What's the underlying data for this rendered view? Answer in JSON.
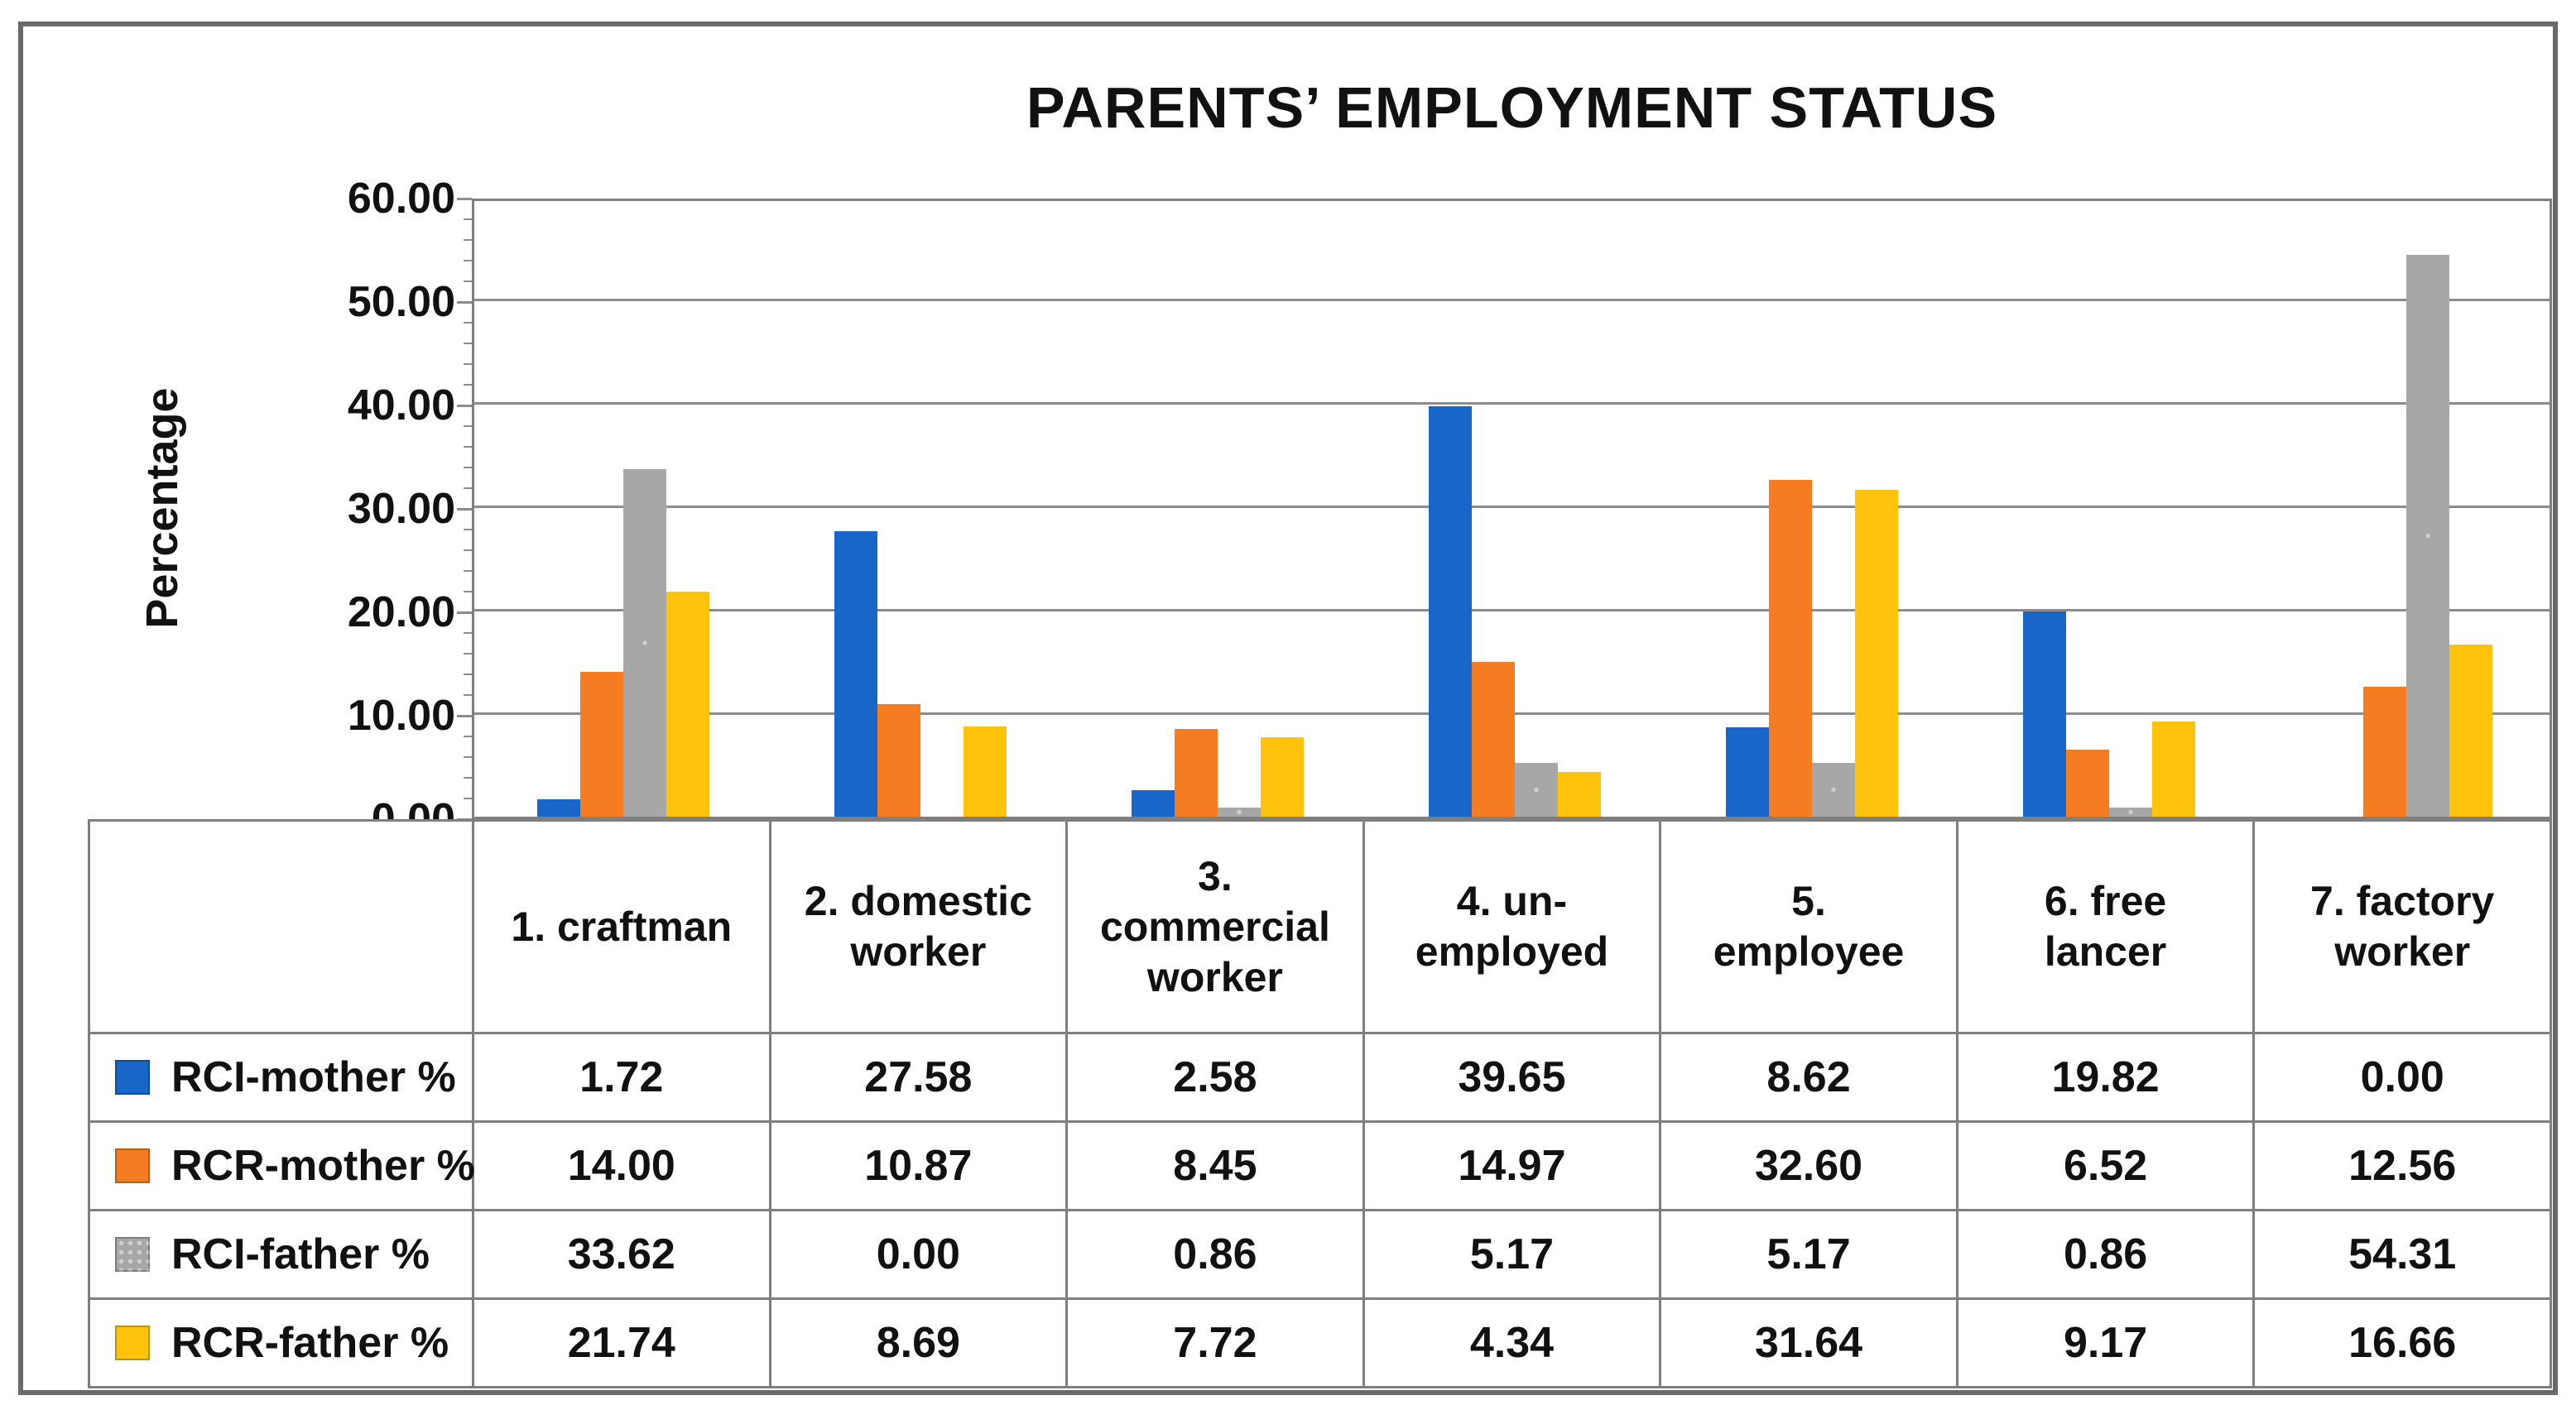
{
  "chart_data": {
    "type": "bar",
    "title": "PARENTS’ EMPLOYMENT STATUS",
    "xlabel": "",
    "ylabel": "Percentage",
    "ylim": [
      0,
      60
    ],
    "ytick_interval": 10,
    "ytick_labels": [
      "60.00",
      "50.00",
      "40.00",
      "30.00",
      "20.00",
      "10.00",
      "0.00"
    ],
    "grid": true,
    "legend_position": "left column of data table",
    "categories": [
      "1. craftman",
      "2. domestic\nworker",
      "3.\ncommercial\nworker",
      "4. un-\nemployed",
      "5.\nemployee",
      "6. free\nlancer",
      "7. factory\nworker"
    ],
    "series": [
      {
        "name": "RCI-mother %",
        "color": "#1766C8",
        "pattern": "solid",
        "values": [
          1.72,
          27.58,
          2.58,
          39.65,
          8.62,
          19.82,
          0.0
        ]
      },
      {
        "name": "RCR-mother %",
        "color": "#F57C21",
        "pattern": "solid",
        "values": [
          14.0,
          10.87,
          8.45,
          14.97,
          32.6,
          6.52,
          12.56
        ]
      },
      {
        "name": "RCI-father %",
        "color": "#A7A7A7",
        "pattern": "dots",
        "values": [
          33.62,
          0.0,
          0.86,
          5.17,
          5.17,
          0.86,
          54.31
        ]
      },
      {
        "name": "RCR-father %",
        "color": "#FFC30B",
        "pattern": "solid",
        "values": [
          21.74,
          8.69,
          7.72,
          4.34,
          31.64,
          9.17,
          16.66
        ]
      }
    ]
  },
  "colors": {
    "gridline": "#8C8C8C",
    "axis_border": "#7F7F7F",
    "table_border": "#7F7F7F",
    "frame": "#6A6A6A",
    "text": "#111111",
    "pattern_dot": "#CFCFCF"
  }
}
